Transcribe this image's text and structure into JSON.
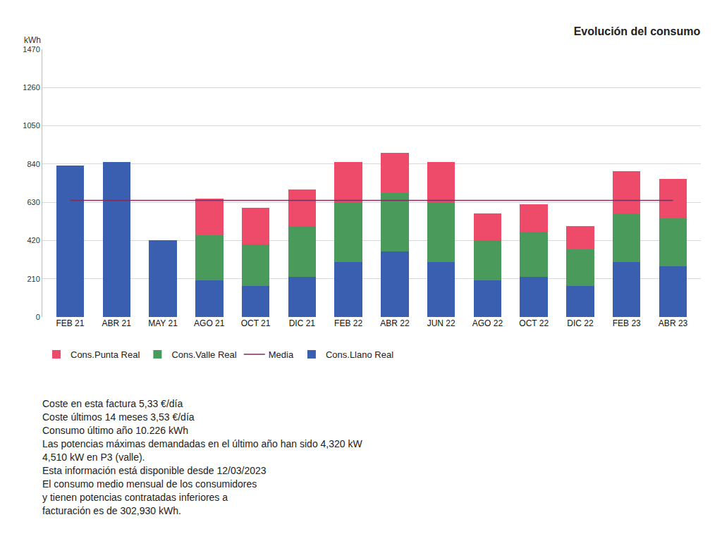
{
  "chart_data": {
    "type": "bar",
    "title": "Evolución del consumo",
    "y_label": "kWh",
    "categories": [
      "FEB 21",
      "ABR 21",
      "MAY 21",
      "AGO 21",
      "OCT 21",
      "DIC 21",
      "FEB 22",
      "ABR 22",
      "JUN 22",
      "AGO 22",
      "OCT 22",
      "DIC 22",
      "FEB 23",
      "ABR 23"
    ],
    "series": [
      {
        "name": "Cons.Llano Real",
        "color": "#3b5fb0",
        "values": [
          830,
          850,
          420,
          200,
          170,
          220,
          300,
          360,
          300,
          200,
          220,
          170,
          300,
          280
        ]
      },
      {
        "name": "Media",
        "type": "line",
        "color": "#7b2d5e",
        "values": [
          640,
          640,
          640,
          640,
          640,
          640,
          640,
          640,
          640,
          640,
          640,
          640,
          640,
          640
        ]
      },
      {
        "name": "Cons.Valle Real",
        "color": "#4a9a5c",
        "values": [
          null,
          null,
          null,
          250,
          230,
          280,
          330,
          320,
          330,
          220,
          250,
          200,
          270,
          260
        ]
      },
      {
        "name": "Cons.Punta Real",
        "color": "#ee4b6a",
        "values": [
          null,
          null,
          null,
          200,
          200,
          200,
          220,
          220,
          220,
          150,
          150,
          130,
          230,
          220
        ]
      }
    ],
    "stacked": true,
    "ylim": [
      0,
      1470
    ],
    "yticks": [
      0,
      210,
      420,
      630,
      840,
      1050,
      1260,
      1470
    ],
    "grid": true,
    "legend": "bottom"
  },
  "notes": [
    "Coste en esta factura 5,33 €/día",
    "Coste últimos 14 meses 3,53 €/día",
    "Consumo último año 10.226 kWh",
    "Las potencias máximas demandadas en el último año han sido 4,320 kW",
    "4,510 kW en P3 (valle).",
    "Esta información está disponible desde 12/03/2023",
    "El consumo medio mensual de los consumidores",
    "y tienen potencias contratadas inferiores a",
    "facturación es de 302,930 kWh."
  ]
}
